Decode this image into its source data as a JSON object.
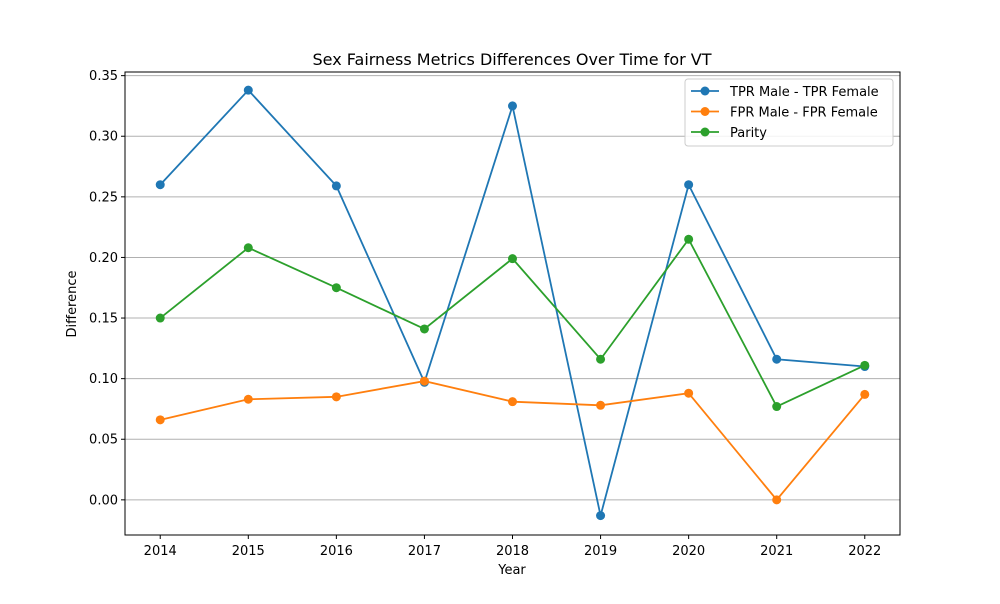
{
  "chart_data": {
    "type": "line",
    "title": "Sex Fairness Metrics Differences Over Time for VT",
    "xlabel": "Year",
    "ylabel": "Difference",
    "x": [
      2014,
      2015,
      2016,
      2017,
      2018,
      2019,
      2020,
      2021,
      2022
    ],
    "xlim": [
      2013.6,
      2022.4
    ],
    "ylim": [
      -0.029,
      0.353
    ],
    "yticks": [
      0.0,
      0.05,
      0.1,
      0.15,
      0.2,
      0.25,
      0.3,
      0.35
    ],
    "ytick_labels": [
      "0.00",
      "0.05",
      "0.10",
      "0.15",
      "0.20",
      "0.25",
      "0.30",
      "0.35"
    ],
    "grid": "horizontal",
    "legend_position": "top-right",
    "series": [
      {
        "name": "TPR Male - TPR Female",
        "color": "#1f77b4",
        "values": [
          0.26,
          0.338,
          0.259,
          0.097,
          0.325,
          -0.013,
          0.26,
          0.116,
          0.11
        ]
      },
      {
        "name": "FPR Male - FPR Female",
        "color": "#ff7f0e",
        "values": [
          0.066,
          0.083,
          0.085,
          0.098,
          0.081,
          0.078,
          0.088,
          0.0,
          0.087
        ]
      },
      {
        "name": "Parity",
        "color": "#2ca02c",
        "values": [
          0.15,
          0.208,
          0.175,
          0.141,
          0.199,
          0.116,
          0.215,
          0.077,
          0.111
        ]
      }
    ]
  }
}
